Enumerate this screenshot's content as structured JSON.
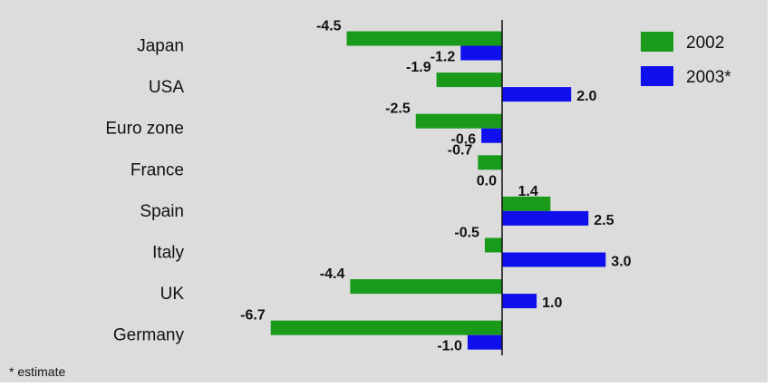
{
  "chart_data": {
    "type": "bar",
    "orientation": "horizontal",
    "categories": [
      "Japan",
      "USA",
      "Euro zone",
      "France",
      "Spain",
      "Italy",
      "UK",
      "Germany"
    ],
    "series": [
      {
        "name": "2002",
        "color": "#1a9a1a",
        "values": [
          -4.5,
          -1.9,
          -2.5,
          -0.7,
          1.4,
          -0.5,
          -4.4,
          -6.7
        ],
        "labels": [
          "-4.5",
          "-1.9",
          "-2.5",
          "-0.7",
          "1.4",
          "-0.5",
          "-4.4",
          "-6.7"
        ]
      },
      {
        "name": "2003*",
        "color": "#1010ee",
        "values": [
          -1.2,
          2.0,
          -0.6,
          0.0,
          2.5,
          3.0,
          1.0,
          -1.0
        ],
        "labels": [
          "-1.2",
          "2.0",
          "-0.6",
          "0.0",
          "2.5",
          "3.0",
          "1.0",
          "-1.0"
        ]
      }
    ],
    "xlim": [
      -6.7,
      3.0
    ],
    "grid": false,
    "legend_position": "top-right",
    "footnote": "* estimate"
  }
}
